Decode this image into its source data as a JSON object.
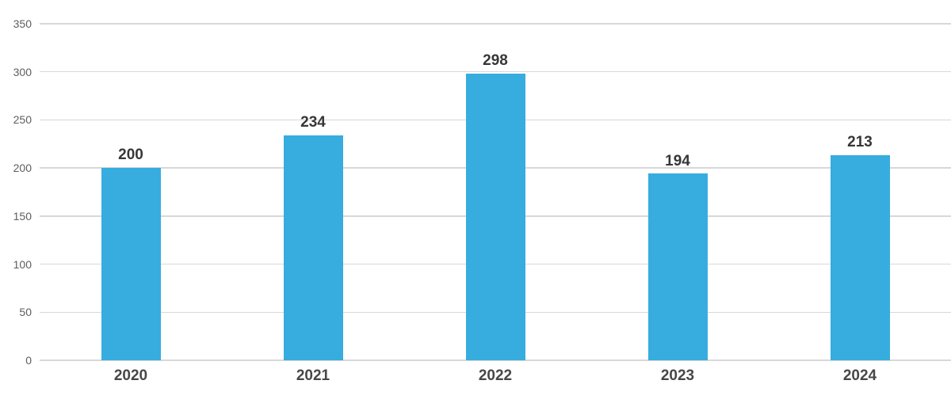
{
  "chart_data": {
    "type": "bar",
    "categories": [
      "2020",
      "2021",
      "2022",
      "2023",
      "2024"
    ],
    "values": [
      200,
      234,
      298,
      194,
      213
    ],
    "title": "",
    "xlabel": "",
    "ylabel": "",
    "ylim": [
      0,
      350
    ],
    "yticks": [
      0,
      50,
      100,
      150,
      200,
      250,
      300,
      350
    ],
    "grid": "horizontal",
    "legend": "none",
    "colors": {
      "bar": "#37ACDF",
      "gridline": "#D8D8D8",
      "y_tick_label": "#5E5E5E",
      "value_label": "#373737",
      "category_label": "#474747",
      "background": "#FFFFFF"
    }
  }
}
